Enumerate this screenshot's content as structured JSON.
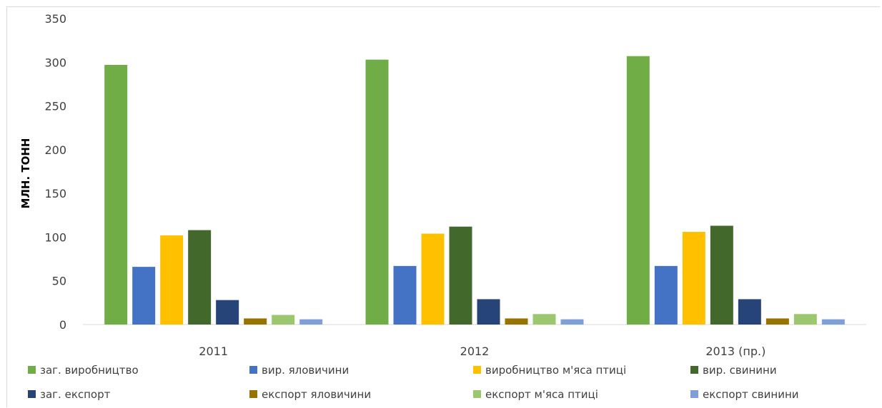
{
  "chart_data": {
    "type": "bar",
    "title": "",
    "xlabel": "",
    "ylabel": "МЛН. ТОНН",
    "ylim": [
      0,
      350
    ],
    "yticks": [
      0,
      50,
      100,
      150,
      200,
      250,
      300,
      350
    ],
    "grid": false,
    "legend_position": "bottom",
    "categories": [
      "2011",
      "2012",
      "2013 (пр.)"
    ],
    "series": [
      {
        "name": "заг. виробництво",
        "color": "#70ad47",
        "values": [
          297,
          303,
          307
        ]
      },
      {
        "name": "вир. яловичини",
        "color": "#4472c4",
        "values": [
          66,
          67,
          67
        ]
      },
      {
        "name": "виробництво м'яса птиці",
        "color": "#ffc000",
        "values": [
          102,
          104,
          106
        ]
      },
      {
        "name": "вир. свинини",
        "color": "#43682b",
        "values": [
          108,
          112,
          113
        ]
      },
      {
        "name": "заг. експорт",
        "color": "#264478",
        "values": [
          28,
          29,
          29
        ]
      },
      {
        "name": "експорт яловичини",
        "color": "#997300",
        "values": [
          7,
          7,
          7
        ]
      },
      {
        "name": "експорт м'яса птиці",
        "color": "#9dc76f",
        "values": [
          11,
          12,
          12
        ]
      },
      {
        "name": "експорт свинини",
        "color": "#7f9fd9",
        "values": [
          6,
          6,
          6
        ]
      }
    ]
  }
}
